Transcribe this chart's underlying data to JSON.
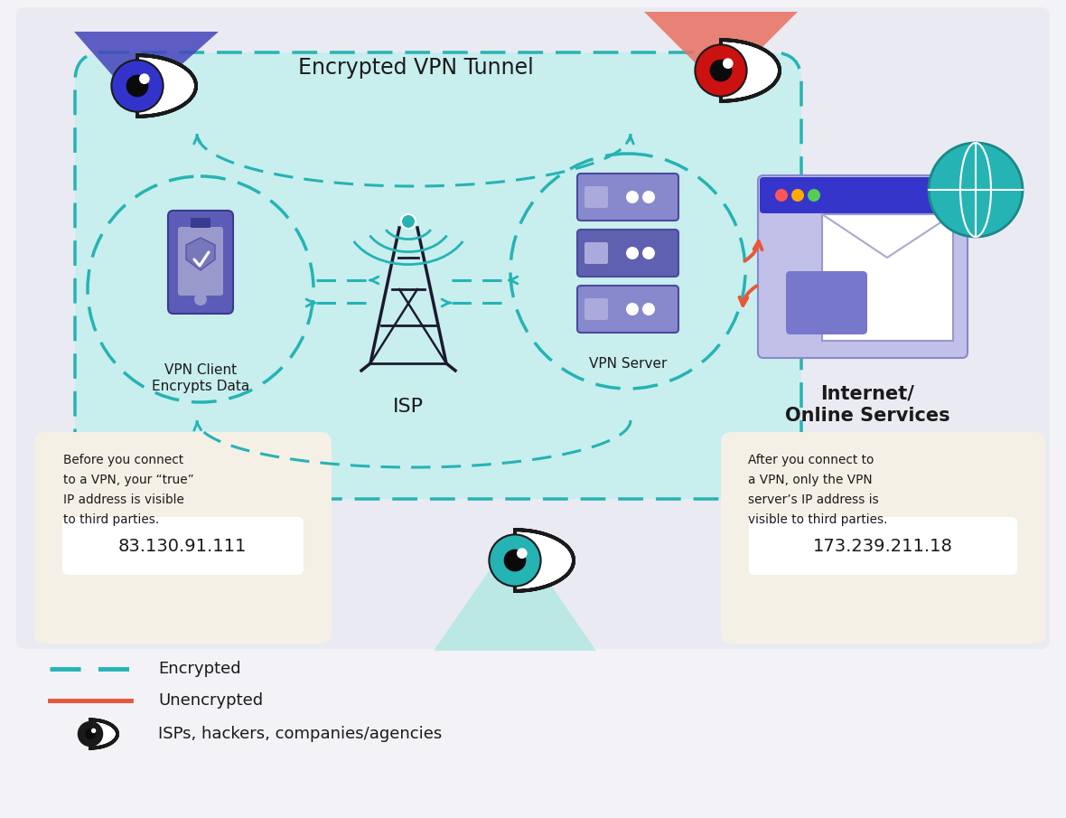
{
  "bg_outer": "#f2f2f7",
  "bg_main": "#eaeaf2",
  "card_bg": "#f5f0e5",
  "tunnel_fill": "#c8eeee",
  "teal": "#26b3b3",
  "orange_red": "#e8563a",
  "dark": "#1a1a1a",
  "white": "#ffffff",
  "blue_iris": "#3535cc",
  "red_iris": "#cc1111",
  "teal_iris": "#26b3b3",
  "phone_body": "#5c5cb8",
  "phone_screen": "#8888cc",
  "server_rack1": "#8888cc",
  "server_rack2": "#5c5cb8",
  "browser_bar": "#3535cc",
  "browser_bg": "#aaaaee",
  "globe_color": "#26b3b3",
  "blue_beam": "#4444bb",
  "orange_beam": "#e87060",
  "teal_beam": "#a8e0e0",
  "title": "Encrypted VPN Tunnel",
  "vpn_client_label1": "VPN Client",
  "vpn_client_label2": "Encrypts Data",
  "isp_label": "ISP",
  "vpn_server_label": "VPN Server",
  "internet_label1": "Internet/",
  "internet_label2": "Online Services",
  "ip1": "83.130.91.111",
  "ip2": "173.239.211.18",
  "box1_line1": "Before you connect",
  "box1_line2": "to a VPN, your “true”",
  "box1_line3": "IP address is visible",
  "box1_line4": "to third parties.",
  "box2_line1": "After you connect to",
  "box2_line2": "a VPN, only the VPN",
  "box2_line3": "server’s IP address is",
  "box2_line4": "visible to third parties.",
  "legend_encrypted": "Encrypted",
  "legend_unencrypted": "Unencrypted",
  "legend_eye": "ISPs, hackers, companies/agencies"
}
